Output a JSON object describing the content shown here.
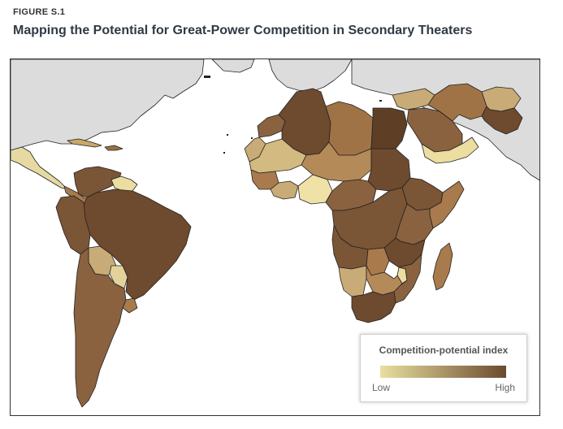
{
  "figure": {
    "label": "FIGURE S.1",
    "title": "Mapping the Potential for Great-Power Competition in Secondary Theaters"
  },
  "legend": {
    "title": "Competition-potential index",
    "low_label": "Low",
    "high_label": "High",
    "low_color": "#e9dfa0",
    "high_color": "#6b4a2e"
  },
  "colors": {
    "non_scope_land": "#dcdcdc",
    "ocean": "#ffffff",
    "border": "#222222"
  }
}
